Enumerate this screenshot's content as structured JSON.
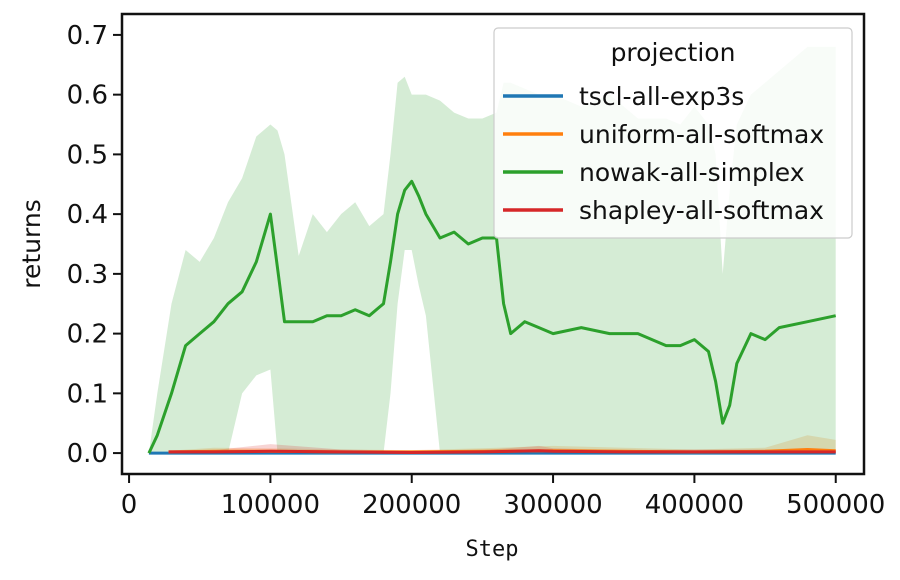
{
  "chart_data": {
    "type": "line",
    "xlabel": "Step",
    "ylabel": "returns",
    "xlim": [
      -5000,
      520000
    ],
    "ylim": [
      -0.035,
      0.735
    ],
    "xticks": [
      0,
      100000,
      200000,
      300000,
      400000,
      500000
    ],
    "xtick_labels": [
      "0",
      "100000",
      "200000",
      "300000",
      "400000",
      "500000"
    ],
    "yticks": [
      0.0,
      0.1,
      0.2,
      0.3,
      0.4,
      0.5,
      0.6,
      0.7
    ],
    "ytick_labels": [
      "0.0",
      "0.1",
      "0.2",
      "0.3",
      "0.4",
      "0.5",
      "0.6",
      "0.7"
    ],
    "legend": {
      "title": "projection",
      "placement": "top-right"
    },
    "series": [
      {
        "name": "tscl-all-exp3s",
        "color": "#1f77b4",
        "x": [
          14000,
          50000,
          100000,
          150000,
          200000,
          250000,
          300000,
          350000,
          400000,
          450000,
          500000
        ],
        "y": [
          0.0,
          0.0,
          0.0,
          0.0,
          0.0,
          0.0,
          0.0,
          0.0,
          0.0,
          0.0,
          0.0
        ],
        "lower": [
          0.0,
          0.0,
          0.0,
          0.0,
          0.0,
          0.0,
          0.0,
          0.0,
          0.0,
          0.0,
          0.0
        ],
        "upper": [
          0.0,
          0.0,
          0.0,
          0.0,
          0.0,
          0.0,
          0.0,
          0.0,
          0.0,
          0.0,
          0.0
        ]
      },
      {
        "name": "uniform-all-softmax",
        "color": "#ff7f0e",
        "x": [
          28000,
          60000,
          100000,
          150000,
          200000,
          250000,
          300000,
          350000,
          400000,
          450000,
          480000,
          500000
        ],
        "y": [
          0.002,
          0.003,
          0.003,
          0.002,
          0.002,
          0.003,
          0.004,
          0.003,
          0.002,
          0.003,
          0.006,
          0.004
        ],
        "lower": [
          0.0,
          0.0,
          0.0,
          0.0,
          0.0,
          0.0,
          0.0,
          0.0,
          0.0,
          0.0,
          0.0,
          0.0
        ],
        "upper": [
          0.004,
          0.009,
          0.008,
          0.006,
          0.005,
          0.008,
          0.012,
          0.009,
          0.006,
          0.009,
          0.03,
          0.022
        ]
      },
      {
        "name": "nowak-all-simplex",
        "color": "#2ca02c",
        "x": [
          14000,
          20000,
          30000,
          40000,
          50000,
          60000,
          70000,
          80000,
          90000,
          100000,
          105000,
          110000,
          120000,
          130000,
          140000,
          150000,
          160000,
          170000,
          180000,
          185000,
          190000,
          195000,
          200000,
          205000,
          210000,
          220000,
          230000,
          240000,
          250000,
          260000,
          265000,
          270000,
          280000,
          290000,
          300000,
          320000,
          340000,
          360000,
          380000,
          390000,
          400000,
          410000,
          415000,
          420000,
          425000,
          430000,
          440000,
          450000,
          460000,
          480000,
          500000
        ],
        "y": [
          0.0,
          0.03,
          0.1,
          0.18,
          0.2,
          0.22,
          0.25,
          0.27,
          0.32,
          0.4,
          0.31,
          0.22,
          0.22,
          0.22,
          0.23,
          0.23,
          0.24,
          0.23,
          0.25,
          0.32,
          0.4,
          0.44,
          0.455,
          0.43,
          0.4,
          0.36,
          0.37,
          0.35,
          0.36,
          0.36,
          0.25,
          0.2,
          0.22,
          0.21,
          0.2,
          0.21,
          0.2,
          0.2,
          0.18,
          0.18,
          0.19,
          0.17,
          0.12,
          0.05,
          0.08,
          0.15,
          0.2,
          0.19,
          0.21,
          0.22,
          0.23
        ],
        "lower": [
          0.0,
          0.0,
          0.0,
          0.0,
          0.0,
          0.0,
          0.0,
          0.1,
          0.13,
          0.14,
          0.0,
          0.0,
          0.0,
          0.0,
          0.0,
          0.0,
          0.0,
          0.0,
          0.0,
          0.1,
          0.25,
          0.34,
          0.34,
          0.28,
          0.23,
          0.0,
          0.0,
          0.0,
          0.0,
          0.0,
          0.0,
          0.0,
          0.0,
          0.0,
          0.0,
          0.0,
          0.0,
          0.0,
          0.0,
          0.0,
          0.0,
          0.0,
          0.0,
          0.0,
          0.0,
          0.0,
          0.0,
          0.0,
          0.0,
          0.0,
          0.0
        ],
        "upper": [
          0.0,
          0.1,
          0.25,
          0.34,
          0.32,
          0.36,
          0.42,
          0.46,
          0.53,
          0.55,
          0.54,
          0.5,
          0.33,
          0.4,
          0.37,
          0.4,
          0.42,
          0.38,
          0.4,
          0.5,
          0.62,
          0.63,
          0.6,
          0.6,
          0.6,
          0.59,
          0.57,
          0.56,
          0.56,
          0.57,
          0.62,
          0.62,
          0.61,
          0.6,
          0.6,
          0.58,
          0.6,
          0.56,
          0.56,
          0.55,
          0.58,
          0.55,
          0.5,
          0.3,
          0.44,
          0.55,
          0.6,
          0.62,
          0.64,
          0.68,
          0.68
        ]
      },
      {
        "name": "shapley-all-softmax",
        "color": "#d62728",
        "x": [
          28000,
          60000,
          100000,
          150000,
          200000,
          250000,
          290000,
          300000,
          350000,
          400000,
          450000,
          500000
        ],
        "y": [
          0.002,
          0.002,
          0.003,
          0.002,
          0.001,
          0.002,
          0.004,
          0.003,
          0.002,
          0.002,
          0.002,
          0.002
        ],
        "lower": [
          0.0,
          0.0,
          0.0,
          0.0,
          0.0,
          0.0,
          0.0,
          0.0,
          0.0,
          0.0,
          0.0,
          0.0
        ],
        "upper": [
          0.004,
          0.005,
          0.015,
          0.006,
          0.004,
          0.005,
          0.012,
          0.008,
          0.005,
          0.006,
          0.006,
          0.005
        ]
      }
    ]
  }
}
